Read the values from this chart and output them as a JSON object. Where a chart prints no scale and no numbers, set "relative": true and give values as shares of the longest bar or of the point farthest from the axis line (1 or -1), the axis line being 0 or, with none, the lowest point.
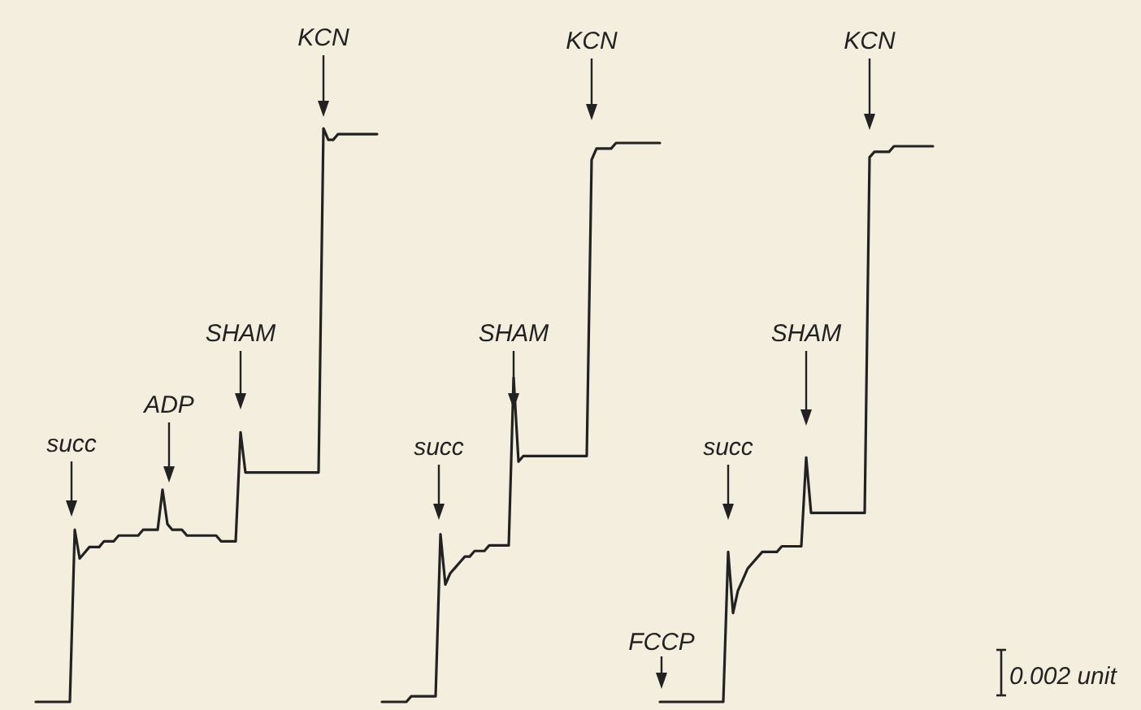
{
  "chart_data": [
    {
      "type": "line",
      "relative": true,
      "categories": [
        null,
        null,
        null,
        null,
        null,
        null,
        null,
        null,
        null,
        null,
        null,
        null,
        null,
        null,
        null,
        null,
        null,
        null,
        null,
        null,
        null,
        null,
        null,
        null,
        null,
        null,
        null,
        null,
        null,
        null,
        null,
        null,
        null,
        null,
        null,
        null,
        null,
        null,
        null,
        null,
        null,
        null,
        null,
        null,
        null,
        null,
        null,
        null,
        null,
        null,
        null,
        null,
        null,
        null,
        null,
        null,
        null,
        null,
        null,
        null,
        null,
        null,
        null,
        null,
        null,
        null,
        null,
        null,
        null,
        null,
        null
      ],
      "series": [
        {
          "color": "#222222",
          "values": [
            0,
            0,
            0,
            0,
            0,
            0,
            0,
            0,
            0.3,
            0.25,
            0.26,
            0.27,
            0.27,
            0.27,
            0.28,
            0.28,
            0.28,
            0.29,
            0.29,
            0.29,
            0.29,
            0.29,
            0.3,
            0.3,
            0.3,
            0.3,
            0.37,
            0.31,
            0.3,
            0.3,
            0.3,
            0.29,
            0.29,
            0.29,
            0.29,
            0.29,
            0.29,
            0.29,
            0.28,
            0.28,
            0.28,
            0.28,
            0.47,
            0.4,
            0.4,
            0.4,
            0.4,
            0.4,
            0.4,
            0.4,
            0.4,
            0.4,
            0.4,
            0.4,
            0.4,
            0.4,
            0.4,
            0.4,
            0.4,
            1,
            0.98,
            0.98,
            0.99,
            0.99,
            0.99,
            0.99,
            0.99,
            0.99,
            0.99,
            0.99,
            0.99
          ]
        }
      ],
      "annotations": [
        "succ",
        "ADP",
        "SHAM",
        "KCN"
      ]
    },
    {
      "type": "line",
      "relative": true,
      "categories": [
        null,
        null,
        null,
        null,
        null,
        null,
        null,
        null,
        null,
        null,
        null,
        null,
        null,
        null,
        null,
        null,
        null,
        null,
        null,
        null,
        null,
        null,
        null,
        null,
        null,
        null,
        null,
        null,
        null,
        null,
        null,
        null,
        null,
        null,
        null,
        null,
        null,
        null,
        null,
        null,
        null,
        null,
        null,
        null,
        null,
        null,
        null,
        null,
        null,
        null,
        null,
        null,
        null,
        null,
        null,
        null,
        null,
        null
      ],
      "series": [
        {
          "color": "#222222",
          "values": [
            0.0,
            0.0,
            0.0,
            0.0,
            0.0,
            0.0,
            0.01,
            0.01,
            0.01,
            0.01,
            0.01,
            0.01,
            0.3,
            0.21,
            0.23,
            0.24,
            0.25,
            0.26,
            0.26,
            0.27,
            0.27,
            0.27,
            0.28,
            0.28,
            0.28,
            0.28,
            0.28,
            0.58,
            0.43,
            0.44,
            0.44,
            0.44,
            0.44,
            0.44,
            0.44,
            0.44,
            0.44,
            0.44,
            0.44,
            0.44,
            0.44,
            0.44,
            0.44,
            0.97,
            0.99,
            0.99,
            0.99,
            0.99,
            1,
            1,
            1,
            1,
            1,
            1,
            1,
            1,
            1,
            1
          ]
        }
      ],
      "annotations": [
        "succ",
        "SHAM",
        "KCN"
      ]
    },
    {
      "type": "line",
      "relative": true,
      "categories": [
        null,
        null,
        null,
        null,
        null,
        null,
        null,
        null,
        null,
        null,
        null,
        null,
        null,
        null,
        null,
        null,
        null,
        null,
        null,
        null,
        null,
        null,
        null,
        null,
        null,
        null,
        null,
        null,
        null,
        null,
        null,
        null,
        null,
        null,
        null,
        null,
        null,
        null,
        null,
        null,
        null,
        null,
        null,
        null,
        null,
        null,
        null,
        null,
        null,
        null,
        null,
        null,
        null,
        null,
        null,
        null,
        null
      ],
      "series": [
        {
          "color": "#222222",
          "values": [
            0,
            0,
            0,
            0,
            0,
            0,
            0,
            0,
            0,
            0,
            0,
            0,
            0,
            0,
            0.27,
            0.16,
            0.2,
            0.22,
            0.24,
            0.25,
            0.26,
            0.27,
            0.27,
            0.27,
            0.27,
            0.28,
            0.28,
            0.28,
            0.28,
            0.28,
            0.44,
            0.34,
            0.34,
            0.34,
            0.34,
            0.34,
            0.34,
            0.34,
            0.34,
            0.34,
            0.34,
            0.34,
            0.34,
            0.98,
            0.99,
            0.99,
            0.99,
            0.99,
            1,
            1,
            1,
            1,
            1,
            1,
            1,
            1,
            1
          ]
        }
      ],
      "annotations": [
        "FCCP",
        "succ",
        "SHAM",
        "KCN",
        "0.002 unit"
      ]
    }
  ]
}
